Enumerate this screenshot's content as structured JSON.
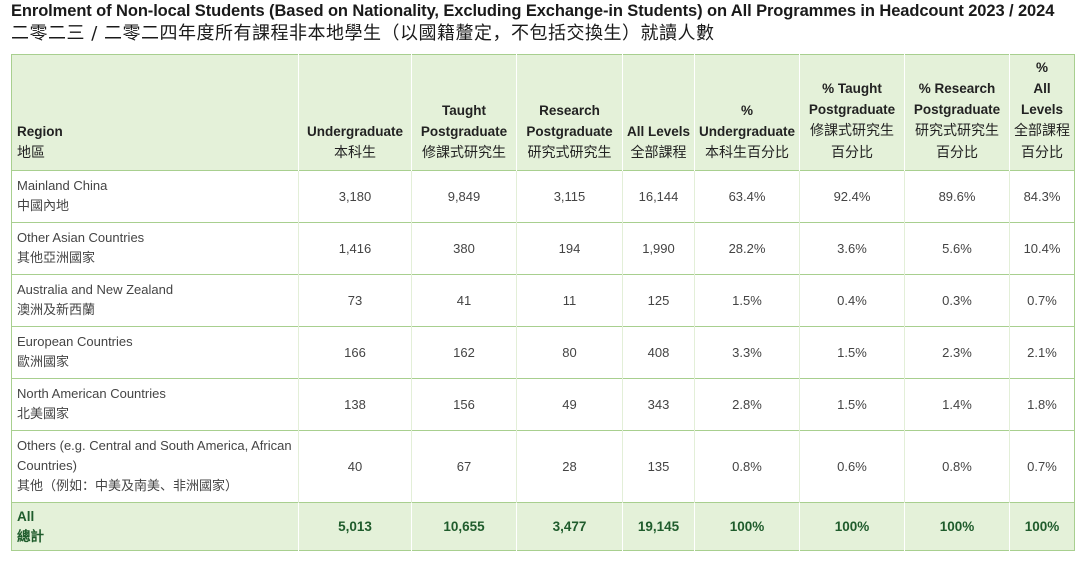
{
  "title": {
    "en": "Enrolment of Non-local Students (Based on Nationality, Excluding Exchange-in Students) on All Programmes in Headcount 2023 / 2024",
    "zh": "二零二三 / 二零二四年度所有課程非本地學生（以國籍釐定，不包括交換生）就讀人數"
  },
  "headers": [
    {
      "en": [
        "Region"
      ],
      "zh": "地區"
    },
    {
      "en": [
        "Undergraduate"
      ],
      "zh": "本科生"
    },
    {
      "en": [
        "Taught",
        "Postgraduate"
      ],
      "zh": "修課式研究生"
    },
    {
      "en": [
        "Research",
        "Postgraduate"
      ],
      "zh": "研究式研究生"
    },
    {
      "en": [
        "All Levels"
      ],
      "zh": "全部課程"
    },
    {
      "en": [
        "%",
        "Undergraduate"
      ],
      "zh": "本科生百分比"
    },
    {
      "en": [
        "% Taught",
        "Postgraduate"
      ],
      "zh": "修課式研究生 百分比"
    },
    {
      "en": [
        "% Research",
        "Postgraduate"
      ],
      "zh": "研究式研究生 百分比"
    },
    {
      "en": [
        "%",
        "All Levels"
      ],
      "zh": "全部課程 百分比"
    }
  ],
  "rows": [
    {
      "region_en": "Mainland China",
      "region_zh": "中國內地",
      "values": [
        "3,180",
        "9,849",
        "3,115",
        "16,144",
        "63.4%",
        "92.4%",
        "89.6%",
        "84.3%"
      ]
    },
    {
      "region_en": "Other Asian Countries",
      "region_zh": "其他亞洲國家",
      "values": [
        "1,416",
        "380",
        "194",
        "1,990",
        "28.2%",
        "3.6%",
        "5.6%",
        "10.4%"
      ]
    },
    {
      "region_en": "Australia and New Zealand",
      "region_zh": "澳洲及新西蘭",
      "values": [
        "73",
        "41",
        "11",
        "125",
        "1.5%",
        "0.4%",
        "0.3%",
        "0.7%"
      ]
    },
    {
      "region_en": "European Countries",
      "region_zh": "歐洲國家",
      "values": [
        "166",
        "162",
        "80",
        "408",
        "3.3%",
        "1.5%",
        "2.3%",
        "2.1%"
      ]
    },
    {
      "region_en": "North American Countries",
      "region_zh": "北美國家",
      "values": [
        "138",
        "156",
        "49",
        "343",
        "2.8%",
        "1.5%",
        "1.4%",
        "1.8%"
      ]
    },
    {
      "region_en": "Others (e.g. Central and South America, African Countries)",
      "region_zh": "其他（例如：中美及南美、非洲國家）",
      "values": [
        "40",
        "67",
        "28",
        "135",
        "0.8%",
        "0.6%",
        "0.8%",
        "0.7%"
      ]
    }
  ],
  "total": {
    "region_en": "All",
    "region_zh": "總計",
    "values": [
      "5,013",
      "10,655",
      "3,477",
      "19,145",
      "100%",
      "100%",
      "100%",
      "100%"
    ]
  },
  "colors": {
    "header_bg": "#e4f1d9",
    "border": "#a8cf8f",
    "total_text": "#1f5c2c"
  }
}
